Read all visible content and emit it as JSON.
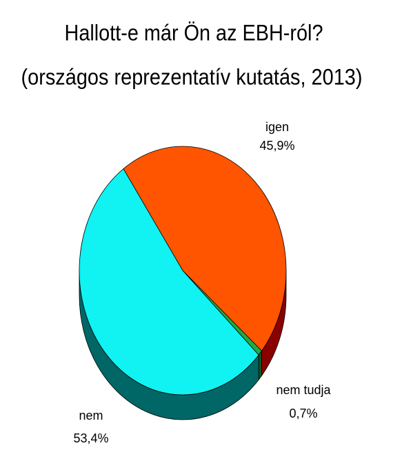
{
  "chart_data": {
    "type": "pie",
    "title": "Hallott-e már Ön az EBH-ról?",
    "subtitle": "(országos reprezentatív kutatás, 2013)",
    "categories": [
      "igen",
      "nem tudja",
      "nem"
    ],
    "values": [
      45.9,
      0.7,
      53.4
    ],
    "value_labels": [
      "45,9%",
      "0,7%",
      "53,4%"
    ],
    "colors": [
      "#ff5500",
      "#22aa44",
      "#11f2f2"
    ]
  }
}
